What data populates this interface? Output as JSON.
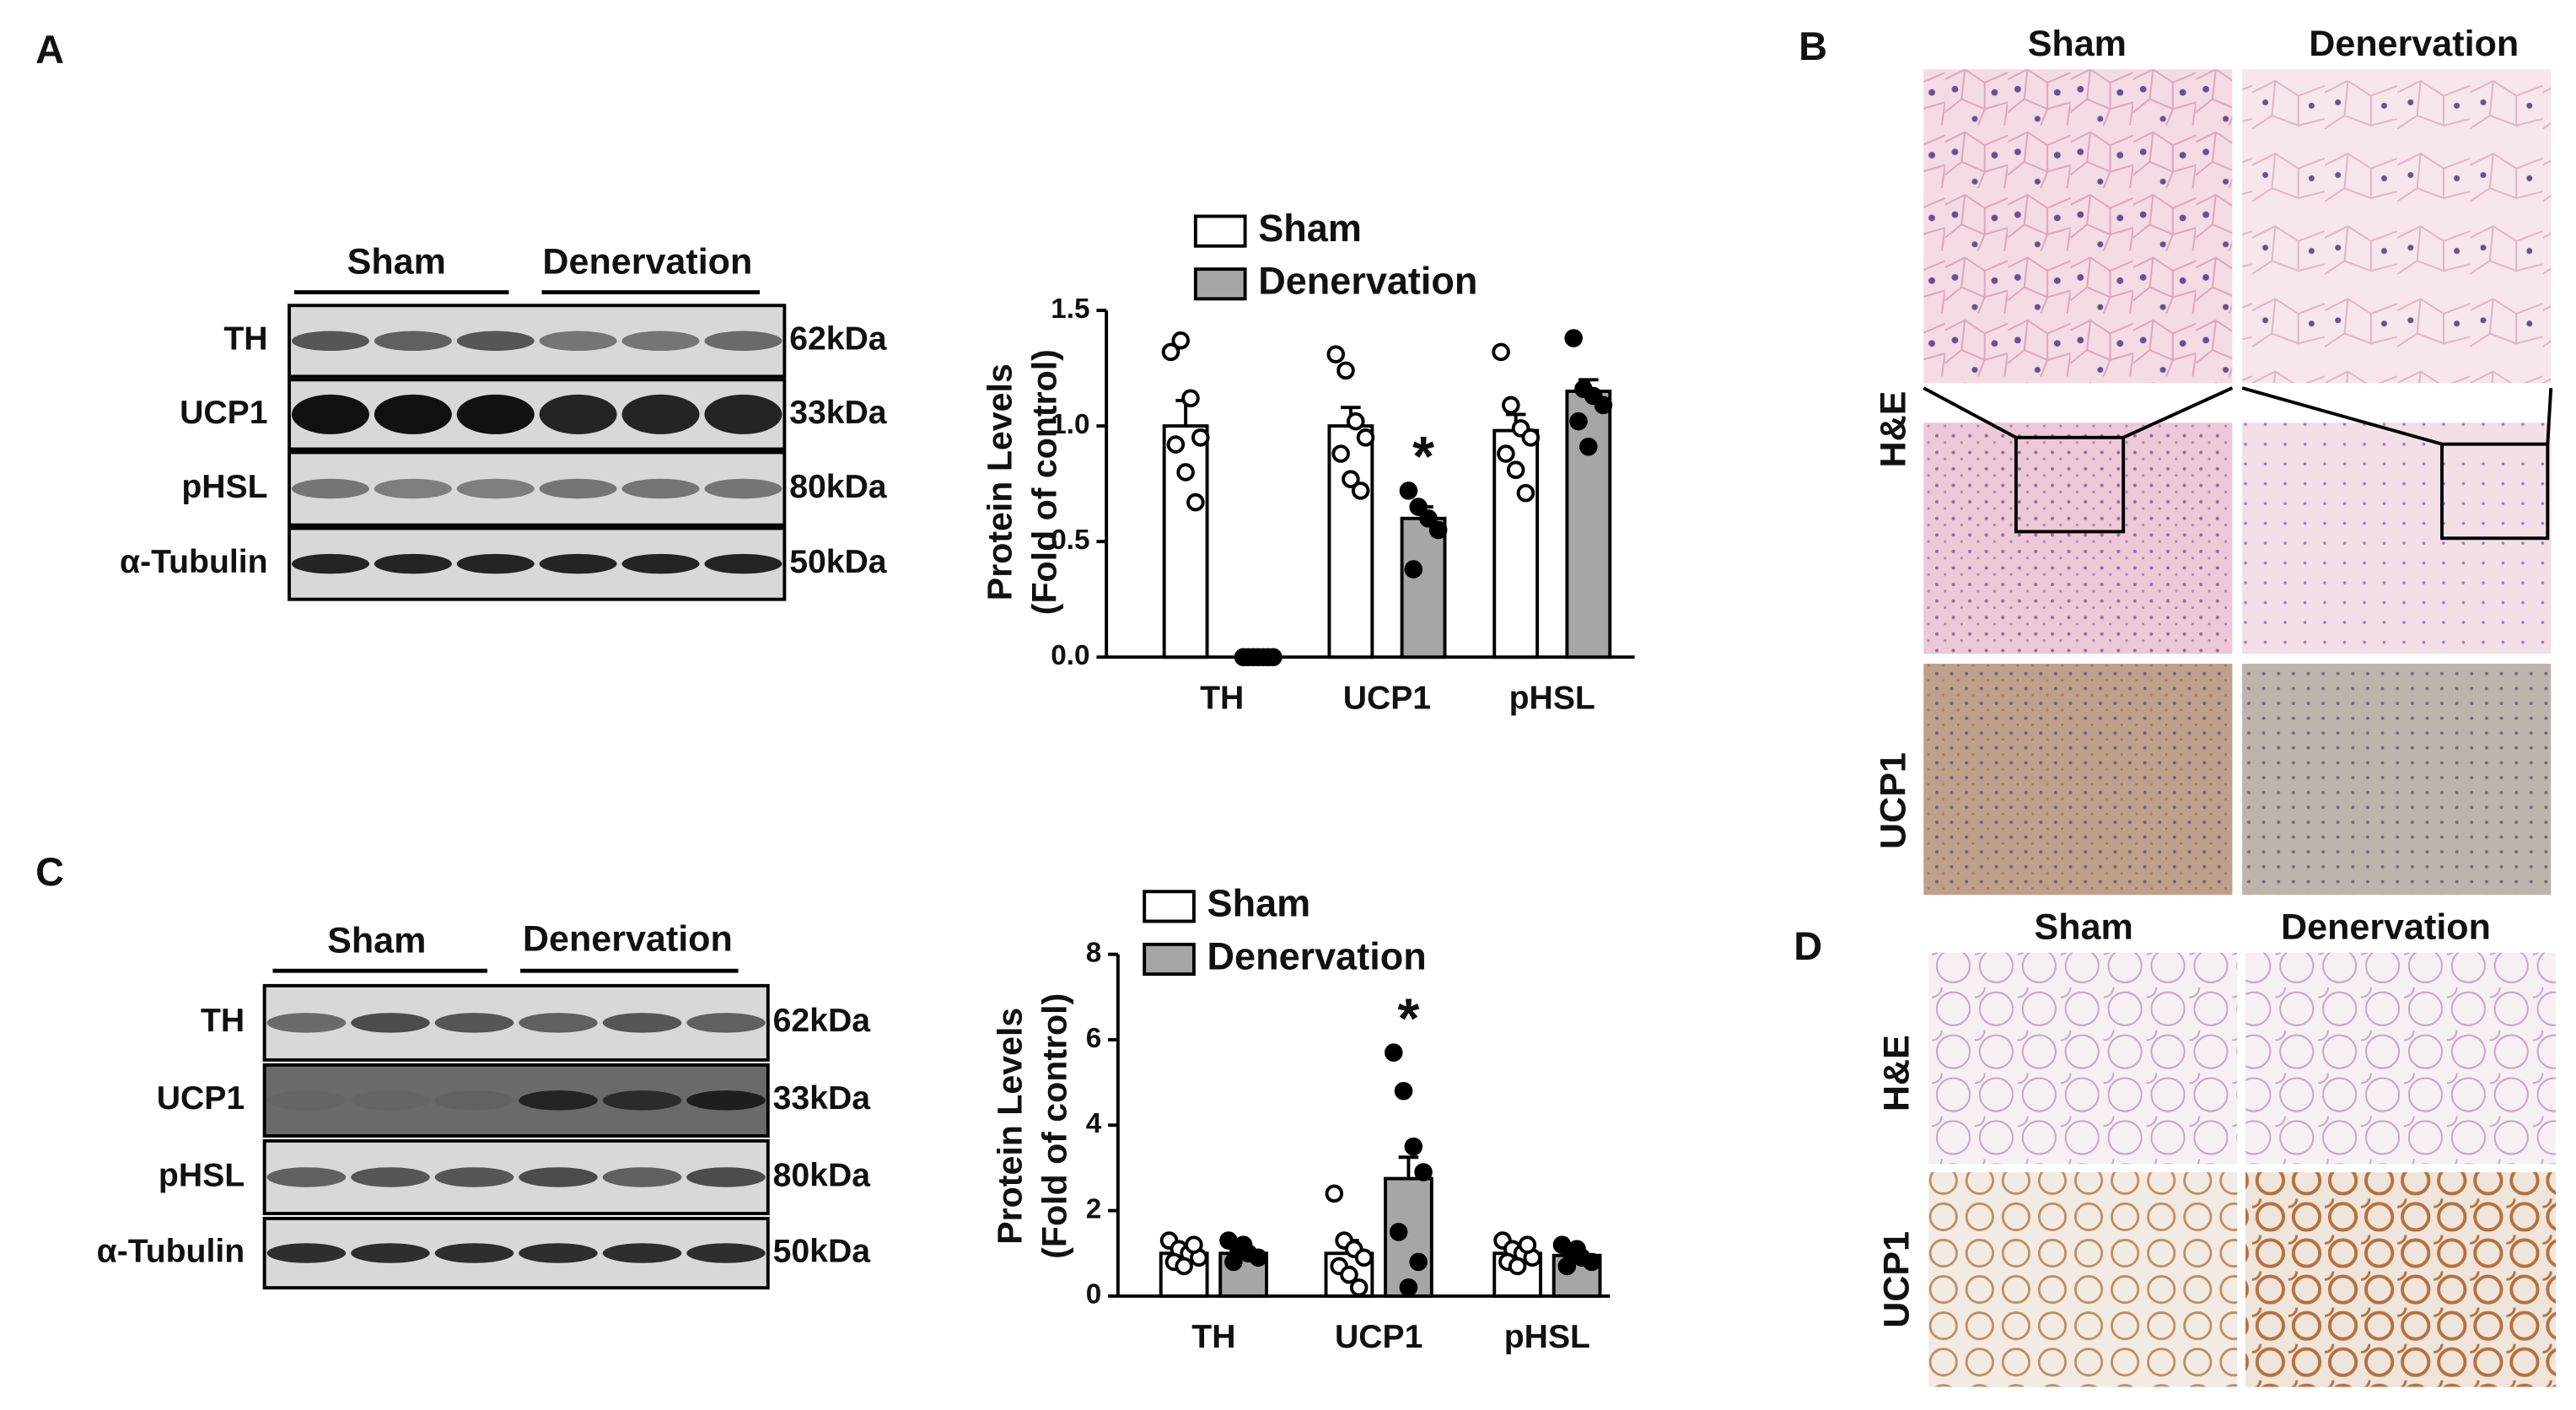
{
  "panel_labels": [
    "A",
    "B",
    "C",
    "D"
  ],
  "blots": [
    {
      "groups": [
        "Sham",
        "Denervation"
      ],
      "proteins": [
        "TH",
        "UCP1",
        "pHSL",
        "α-Tubulin"
      ],
      "sizes": [
        "62kDa",
        "33kDa",
        "80kDa",
        "50kDa"
      ]
    },
    {
      "groups": [
        "Sham",
        "Denervation"
      ],
      "proteins": [
        "TH",
        "UCP1",
        "pHSL",
        "α-Tubulin"
      ],
      "sizes": [
        "62kDa",
        "33kDa",
        "80kDa",
        "50kDa"
      ]
    }
  ],
  "histology": [
    {
      "columns": [
        "Sham",
        "Denervation"
      ],
      "rows": [
        "H&E",
        "UCP1"
      ]
    },
    {
      "columns": [
        "Sham",
        "Denervation"
      ],
      "rows": [
        "H&E",
        "UCP1"
      ]
    }
  ],
  "chart_data": [
    {
      "type": "bar",
      "ylabel": [
        "Protein Levels",
        "(Fold of control)"
      ],
      "categories": [
        "TH",
        "UCP1",
        "pHSL"
      ],
      "ylim": [
        0,
        1.5
      ],
      "yticks": [
        {
          "value": 0,
          "label": "0.0"
        },
        {
          "value": 0.5,
          "label": "0.5"
        },
        {
          "value": 1,
          "label": "1.0"
        },
        {
          "value": 1.5,
          "label": "1.5"
        }
      ],
      "annotation": "*",
      "series": [
        {
          "name": "Sham",
          "color": "#ffffff",
          "values": [
            1.0,
            1.0,
            0.98
          ],
          "errors": [
            0.11,
            0.08,
            0.07
          ],
          "points": [
            [
              1.32,
              1.37,
              1.12,
              0.95,
              0.92,
              0.8,
              0.67
            ],
            [
              1.31,
              1.24,
              1.02,
              0.95,
              0.88,
              0.77,
              0.72
            ],
            [
              1.32,
              1.09,
              0.99,
              0.95,
              0.88,
              0.81,
              0.71
            ]
          ]
        },
        {
          "name": "Denervation",
          "color": "#a6a6a6",
          "values": [
            0.01,
            0.6,
            1.15
          ],
          "errors": [
            0.01,
            0.05,
            0.05
          ],
          "points": [
            [
              0,
              0,
              0,
              0,
              0,
              0,
              0
            ],
            [
              0.72,
              0.65,
              0.6,
              0.55,
              0.38
            ],
            [
              1.38,
              1.16,
              1.13,
              1.09,
              1.02,
              0.91
            ]
          ]
        }
      ]
    },
    {
      "type": "bar",
      "ylabel": [
        "Protein Levels",
        "(Fold of control)"
      ],
      "categories": [
        "TH",
        "UCP1",
        "pHSL"
      ],
      "ylim": [
        0,
        8
      ],
      "yticks": [
        0,
        2,
        4,
        6,
        8
      ],
      "annotation": "*",
      "series": [
        {
          "name": "Sham",
          "color": "#ffffff",
          "values": [
            1.0,
            1.0,
            1.0
          ],
          "errors": [
            0.1,
            0.3,
            0.1
          ],
          "points": [
            [
              1.3,
              1.1,
              1.0,
              0.9,
              0.8,
              0.7,
              1.2
            ],
            [
              2.4,
              1.3,
              1.1,
              0.9,
              0.7,
              0.5,
              0.2
            ],
            [
              1.3,
              1.1,
              1.0,
              0.9,
              0.8,
              0.7,
              1.2
            ]
          ]
        },
        {
          "name": "Denervation",
          "color": "#a6a6a6",
          "values": [
            1.0,
            2.75,
            0.95
          ],
          "errors": [
            0.1,
            0.5,
            0.08
          ],
          "points": [
            [
              1.3,
              1.1,
              1.0,
              0.9,
              0.8,
              1.2
            ],
            [
              5.7,
              4.8,
              3.5,
              2.9,
              1.5,
              0.2,
              0.8
            ],
            [
              1.2,
              1.0,
              0.9,
              0.8,
              0.7,
              1.1
            ]
          ]
        }
      ]
    }
  ]
}
